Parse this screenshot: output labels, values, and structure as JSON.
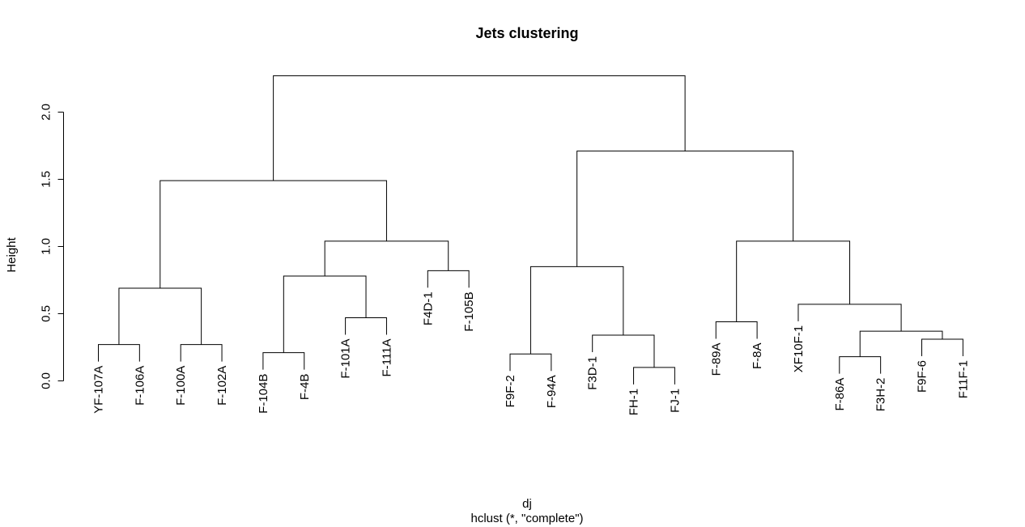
{
  "chart_data": {
    "type": "dendrogram",
    "title": "Jets clustering",
    "xlabel": "dj",
    "sublabel": "hclust (*, \"complete\")",
    "ylabel": "Height",
    "ylim": [
      0,
      2.25
    ],
    "yticks": [
      "0.0",
      "0.5",
      "1.0",
      "1.5",
      "2.0"
    ],
    "leaves": [
      {
        "label": "YF-107A",
        "height": 0.27
      },
      {
        "label": "F-106A",
        "height": 0.27
      },
      {
        "label": "F-100A",
        "height": 0.27
      },
      {
        "label": "F-102A",
        "height": 0.27
      },
      {
        "label": "F-104B",
        "height": 0.21
      },
      {
        "label": "F-4B",
        "height": 0.21
      },
      {
        "label": "F-101A",
        "height": 0.47
      },
      {
        "label": "F-111A",
        "height": 0.47
      },
      {
        "label": "F4D-1",
        "height": 0.82
      },
      {
        "label": "F-105B",
        "height": 0.82
      },
      {
        "label": "F9F-2",
        "height": 0.2
      },
      {
        "label": "F-94A",
        "height": 0.2
      },
      {
        "label": "F3D-1",
        "height": 0.34
      },
      {
        "label": "FH-1",
        "height": 0.1
      },
      {
        "label": "FJ-1",
        "height": 0.1
      },
      {
        "label": "F-89A",
        "height": 0.44
      },
      {
        "label": "F-8A",
        "height": 0.44
      },
      {
        "label": "XF10F-1",
        "height": 0.57
      },
      {
        "label": "F-86A",
        "height": 0.18
      },
      {
        "label": "F3H-2",
        "height": 0.18
      },
      {
        "label": "F9F-6",
        "height": 0.31
      },
      {
        "label": "F11F-1",
        "height": 0.31
      }
    ],
    "merges": [
      {
        "a": "L0",
        "b": "L1",
        "height": 0.27
      },
      {
        "a": "L2",
        "b": "L3",
        "height": 0.27
      },
      {
        "a": "M0",
        "b": "M1",
        "height": 0.69
      },
      {
        "a": "L4",
        "b": "L5",
        "height": 0.21
      },
      {
        "a": "L6",
        "b": "L7",
        "height": 0.47
      },
      {
        "a": "M3",
        "b": "M4",
        "height": 0.78
      },
      {
        "a": "L8",
        "b": "L9",
        "height": 0.82
      },
      {
        "a": "M5",
        "b": "M6",
        "height": 1.04
      },
      {
        "a": "M2",
        "b": "M7",
        "height": 1.49
      },
      {
        "a": "L10",
        "b": "L11",
        "height": 0.2
      },
      {
        "a": "L13",
        "b": "L14",
        "height": 0.1
      },
      {
        "a": "L12",
        "b": "M10",
        "height": 0.34
      },
      {
        "a": "M9",
        "b": "M11",
        "height": 0.85
      },
      {
        "a": "L15",
        "b": "L16",
        "height": 0.44
      },
      {
        "a": "L18",
        "b": "L19",
        "height": 0.18
      },
      {
        "a": "L20",
        "b": "L21",
        "height": 0.31
      },
      {
        "a": "M14",
        "b": "M15",
        "height": 0.37
      },
      {
        "a": "L17",
        "b": "M16",
        "height": 0.57
      },
      {
        "a": "M13",
        "b": "M17",
        "height": 1.04
      },
      {
        "a": "M12",
        "b": "M18",
        "height": 1.71
      },
      {
        "a": "M8",
        "b": "M19",
        "height": 2.27
      }
    ]
  }
}
